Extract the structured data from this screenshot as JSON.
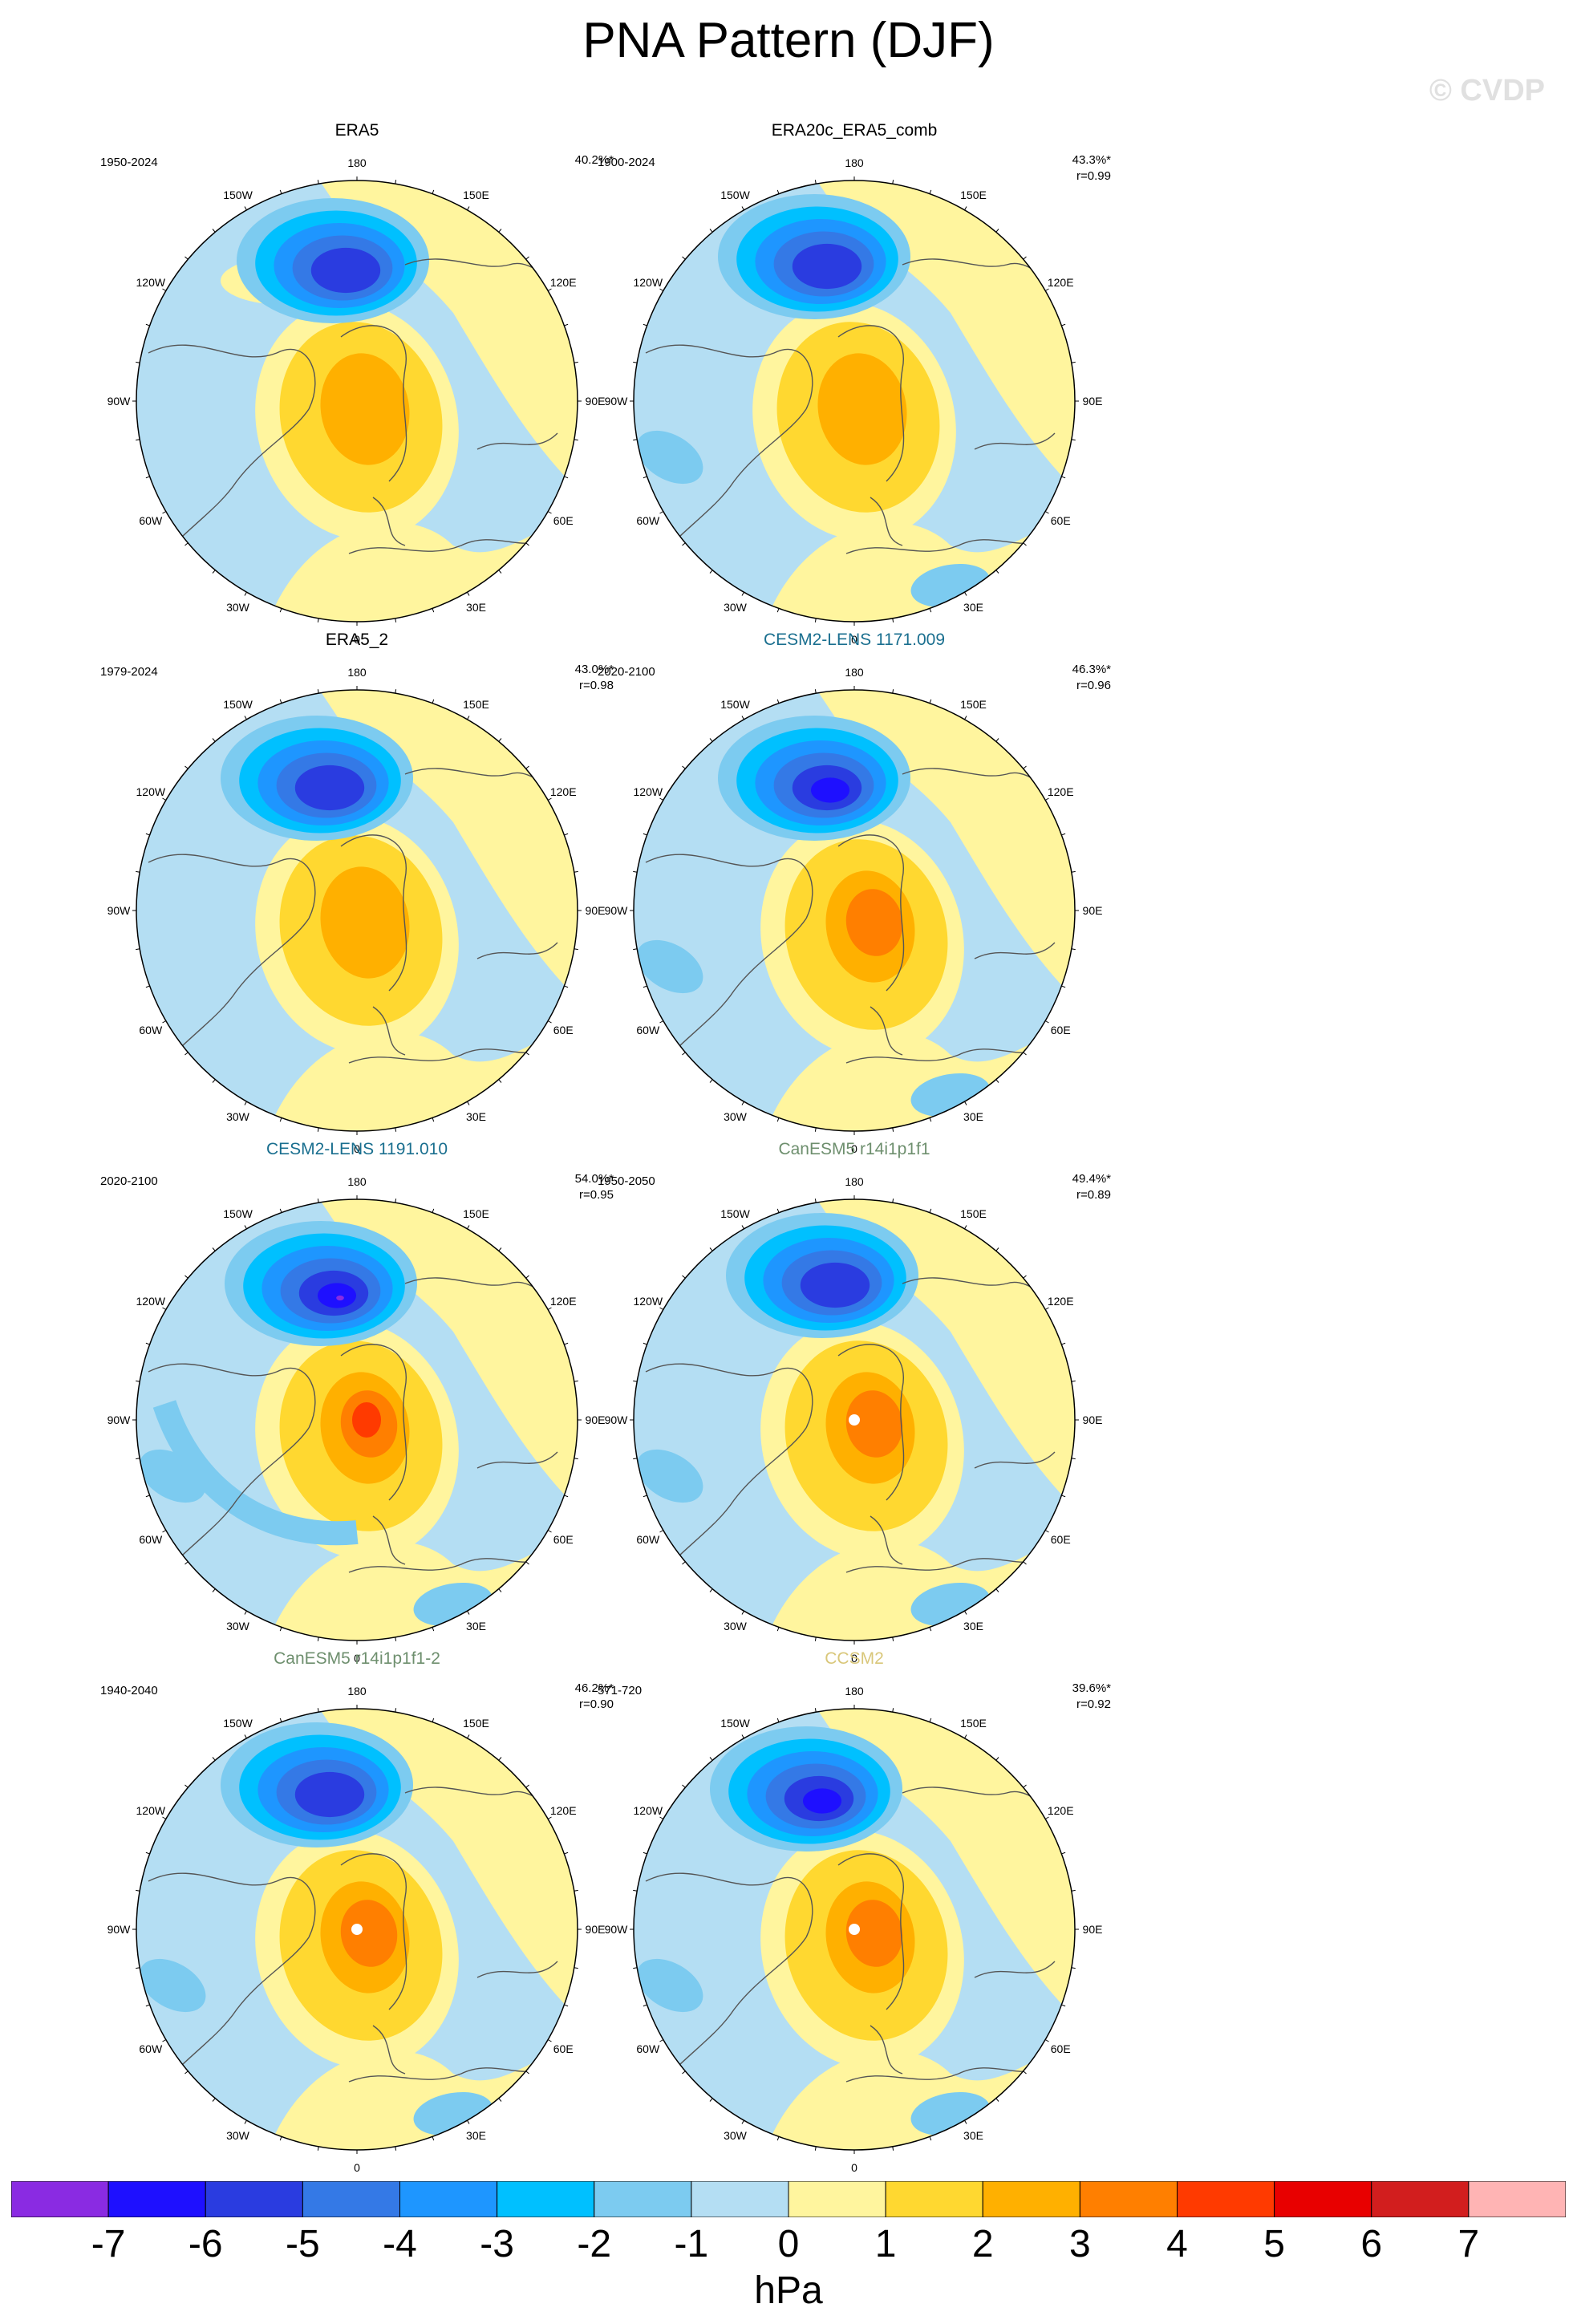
{
  "title": "PNA Pattern (DJF)",
  "watermark": "© CVDP",
  "lon_labels": [
    "180",
    "150E",
    "120E",
    "90E",
    "60E",
    "30E",
    "0",
    "30W",
    "60W",
    "90W",
    "120W",
    "150W"
  ],
  "panels": [
    {
      "title": "ERA5",
      "title_color": "#000000",
      "period": "1950-2024",
      "pct": "40.2%*",
      "r": ""
    },
    {
      "title": "ERA20c_ERA5_comb",
      "title_color": "#000000",
      "period": "1900-2024",
      "pct": "43.3%*",
      "r": "r=0.99"
    },
    {
      "title": "ERA5_2",
      "title_color": "#000000",
      "period": "1979-2024",
      "pct": "43.0%*",
      "r": "r=0.98"
    },
    {
      "title": "CESM2-LENS 1171.009",
      "title_color": "#1a6f8f",
      "period": "2020-2100",
      "pct": "46.3%*",
      "r": "r=0.96"
    },
    {
      "title": "CESM2-LENS 1191.010",
      "title_color": "#1a6f8f",
      "period": "2020-2100",
      "pct": "54.0%*",
      "r": "r=0.95"
    },
    {
      "title": "CanESM5 r14i1p1f1",
      "title_color": "#6e8f6e",
      "period": "1950-2050",
      "pct": "49.4%*",
      "r": "r=0.89"
    },
    {
      "title": "CanESM5 r14i1p1f1-2",
      "title_color": "#6e8f6e",
      "period": "1940-2040",
      "pct": "46.2%*",
      "r": "r=0.90"
    },
    {
      "title": "CCSM2",
      "title_color": "#d9c77a",
      "period": "571-720",
      "pct": "39.6%*",
      "r": "r=0.92"
    }
  ],
  "colorbar": {
    "colors": [
      "#8a2be2",
      "#1e10ff",
      "#2a3ce0",
      "#3479e6",
      "#1e96ff",
      "#00c0ff",
      "#7ccbf0",
      "#b4def3",
      "#fff59e",
      "#ffd830",
      "#ffb000",
      "#ff7f00",
      "#ff3a00",
      "#e80000",
      "#d21e1e",
      "#ffb4b4"
    ],
    "ticks": [
      "-7",
      "-6",
      "-5",
      "-4",
      "-3",
      "-2",
      "-1",
      "0",
      "1",
      "2",
      "3",
      "4",
      "5",
      "6",
      "7"
    ],
    "unit": "hPa"
  },
  "chart_data": {
    "type": "heatmap",
    "title": "PNA Pattern (DJF)",
    "projection": "north polar stereographic",
    "units": "hPa",
    "levels": [
      -7,
      -6,
      -5,
      -4,
      -3,
      -2,
      -1,
      0,
      1,
      2,
      3,
      4,
      5,
      6,
      7
    ],
    "panel_min_approx": {
      "ERA5": -5,
      "ERA20c_ERA5_comb": -5,
      "ERA5_2": -5,
      "CESM2-LENS 1171.009": -6,
      "CESM2-LENS 1191.010": -7,
      "CanESM5 r14i1p1f1": -5,
      "CanESM5 r14i1p1f1-2": -5,
      "CCSM2": -6
    },
    "panel_max_approx": {
      "ERA5": 2,
      "ERA20c_ERA5_comb": 2,
      "ERA5_2": 2,
      "CESM2-LENS 1171.009": 3,
      "CESM2-LENS 1191.010": 4,
      "CanESM5 r14i1p1f1": 3,
      "CanESM5 r14i1p1f1-2": 3,
      "CCSM2": 3
    }
  }
}
